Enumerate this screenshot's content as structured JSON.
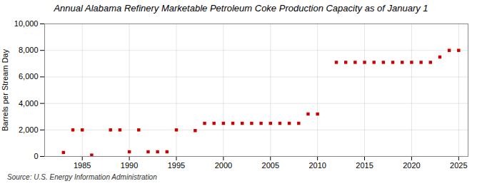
{
  "chart_data": {
    "type": "scatter",
    "title": "Annual Alabama Refinery Marketable Petroleum Coke Production Capacity as of January 1",
    "ylabel": "Barrels per Stream Day",
    "annotations": [
      "Source: U.S. Energy Information Administration"
    ],
    "color": "#cc0000",
    "marker": "square",
    "grid": true,
    "xlim": [
      1981,
      2026
    ],
    "ylim": [
      0,
      10000
    ],
    "xticks": [
      1985,
      1990,
      1995,
      2000,
      2005,
      2010,
      2015,
      2020,
      2025
    ],
    "yticks": [
      0,
      {
        "value": 2000,
        "label": "2,000"
      },
      {
        "value": 4000,
        "label": "4,000"
      },
      {
        "value": 6000,
        "label": "6,000"
      },
      {
        "value": 8000,
        "label": "8,000"
      },
      {
        "value": 10000,
        "label": "10,000"
      }
    ],
    "x": [
      1983,
      1984,
      1985,
      1986,
      1988,
      1989,
      1990,
      1991,
      1992,
      1993,
      1994,
      1995,
      1997,
      1998,
      1999,
      2000,
      2001,
      2002,
      2003,
      2004,
      2005,
      2006,
      2007,
      2008,
      2009,
      2010,
      2012,
      2013,
      2014,
      2015,
      2016,
      2017,
      2018,
      2019,
      2020,
      2021,
      2022,
      2023,
      2024,
      2025
    ],
    "values": [
      300,
      2000,
      2000,
      100,
      2000,
      2000,
      350,
      2000,
      350,
      350,
      350,
      2000,
      1950,
      2500,
      2500,
      2500,
      2500,
      2500,
      2500,
      2500,
      2500,
      2500,
      2500,
      2500,
      3200,
      3200,
      7100,
      7100,
      7100,
      7100,
      7100,
      7100,
      7100,
      7100,
      7100,
      7100,
      7100,
      7500,
      8000,
      8000
    ]
  }
}
